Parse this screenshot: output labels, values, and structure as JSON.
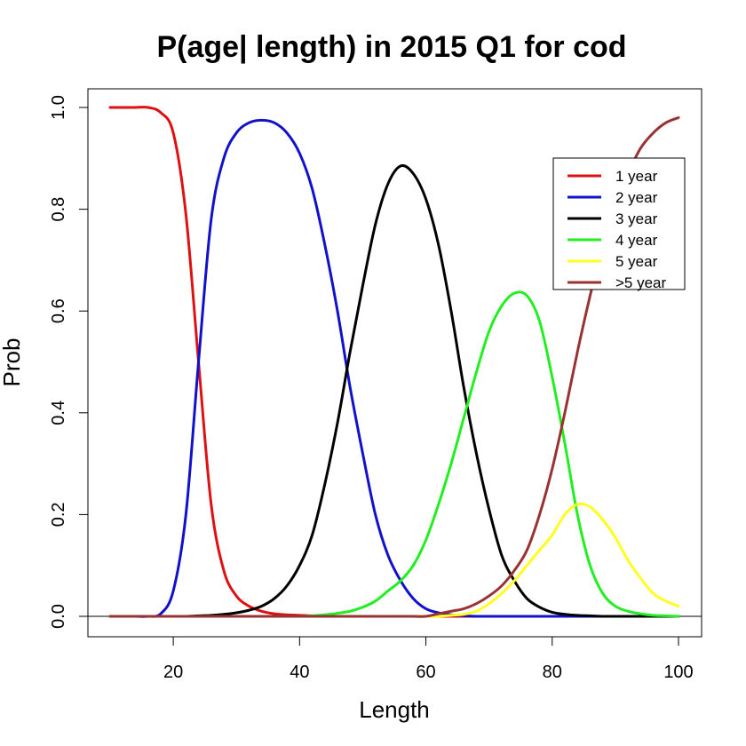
{
  "chart_data": {
    "type": "line",
    "title": "P(age| length) in 2015 Q1 for cod",
    "xlabel": "Length",
    "ylabel": "Prob",
    "xlim": [
      10,
      100
    ],
    "ylim": [
      0,
      1
    ],
    "xticks": [
      20,
      40,
      60,
      80,
      100
    ],
    "yticks": [
      "0.0",
      "0.2",
      "0.4",
      "0.6",
      "0.8",
      "1.0"
    ],
    "hline_at": 0,
    "legend_position": "top-right",
    "x": [
      10,
      12,
      14,
      16,
      18,
      20,
      22,
      24,
      26,
      28,
      30,
      32,
      34,
      36,
      38,
      40,
      42,
      44,
      46,
      48,
      50,
      52,
      54,
      56,
      58,
      60,
      62,
      64,
      66,
      68,
      70,
      72,
      74,
      76,
      78,
      80,
      82,
      84,
      86,
      88,
      90,
      92,
      94,
      96,
      98,
      100
    ],
    "series": [
      {
        "name": "1 year",
        "color": "#dd1111",
        "values": [
          1.0,
          1.0,
          1.0,
          1.0,
          0.99,
          0.95,
          0.79,
          0.5,
          0.22,
          0.09,
          0.04,
          0.02,
          0.01,
          0.005,
          0.003,
          0.002,
          0.001,
          0,
          0,
          0,
          0,
          0,
          0,
          0,
          0,
          0,
          0,
          0,
          0,
          0,
          0,
          0,
          0,
          0,
          0,
          0,
          0,
          0,
          0,
          0,
          0,
          0,
          0,
          0,
          0,
          0
        ]
      },
      {
        "name": "2 year",
        "color": "#1111cc",
        "values": [
          0,
          0,
          0,
          0,
          0.005,
          0.05,
          0.2,
          0.5,
          0.78,
          0.9,
          0.95,
          0.97,
          0.975,
          0.97,
          0.95,
          0.91,
          0.84,
          0.73,
          0.6,
          0.45,
          0.32,
          0.2,
          0.12,
          0.07,
          0.035,
          0.015,
          0.007,
          0.003,
          0.001,
          0,
          0,
          0,
          0,
          0,
          0,
          0,
          0,
          0,
          0,
          0,
          0,
          0,
          0,
          0,
          0,
          0
        ]
      },
      {
        "name": "3 year",
        "color": "#000000",
        "values": [
          0,
          0,
          0,
          0,
          0,
          0,
          0,
          0.001,
          0.002,
          0.004,
          0.007,
          0.012,
          0.02,
          0.035,
          0.06,
          0.1,
          0.16,
          0.26,
          0.38,
          0.52,
          0.65,
          0.77,
          0.85,
          0.885,
          0.87,
          0.82,
          0.73,
          0.6,
          0.45,
          0.32,
          0.21,
          0.12,
          0.07,
          0.035,
          0.018,
          0.008,
          0.004,
          0.002,
          0.001,
          0,
          0,
          0,
          0,
          0,
          0,
          0
        ]
      },
      {
        "name": "4 year",
        "color": "#22ee22",
        "values": [
          0,
          0,
          0,
          0,
          0,
          0,
          0,
          0,
          0,
          0,
          0,
          0,
          0,
          0,
          0,
          0,
          0.001,
          0.003,
          0.006,
          0.01,
          0.018,
          0.03,
          0.05,
          0.07,
          0.1,
          0.15,
          0.22,
          0.3,
          0.39,
          0.48,
          0.56,
          0.61,
          0.635,
          0.63,
          0.58,
          0.47,
          0.34,
          0.2,
          0.1,
          0.045,
          0.02,
          0.01,
          0.005,
          0.002,
          0.001,
          0.0
        ]
      },
      {
        "name": "5 year",
        "color": "#ffff22",
        "values": [
          0,
          0,
          0,
          0,
          0,
          0,
          0,
          0,
          0,
          0,
          0,
          0,
          0,
          0,
          0,
          0,
          0,
          0,
          0,
          0,
          0,
          0,
          0,
          0,
          0,
          0,
          0,
          0.002,
          0.004,
          0.01,
          0.025,
          0.045,
          0.07,
          0.1,
          0.13,
          0.16,
          0.2,
          0.22,
          0.215,
          0.19,
          0.155,
          0.11,
          0.075,
          0.045,
          0.03,
          0.02
        ]
      },
      {
        "name": ">5 year",
        "color": "#993333",
        "values": [
          0,
          0,
          0,
          0,
          0,
          0,
          0,
          0,
          0,
          0,
          0,
          0,
          0,
          0,
          0,
          0,
          0,
          0,
          0,
          0,
          0,
          0,
          0,
          0,
          0,
          0,
          0.005,
          0.01,
          0.015,
          0.025,
          0.04,
          0.06,
          0.09,
          0.13,
          0.2,
          0.29,
          0.4,
          0.52,
          0.63,
          0.73,
          0.81,
          0.87,
          0.92,
          0.95,
          0.97,
          0.98
        ]
      }
    ]
  }
}
